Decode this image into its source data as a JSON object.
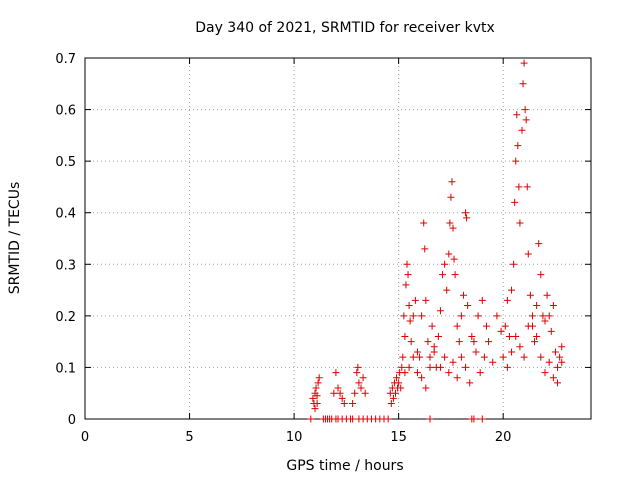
{
  "chart_data": {
    "type": "scatter",
    "title": "Day 340 of 2021, SRMTID for receiver kvtx",
    "xlabel": "GPS time / hours",
    "ylabel": "SRMTID / TECUs",
    "xlim": [
      0,
      24.2
    ],
    "ylim": [
      0,
      0.7
    ],
    "x_ticks": [
      0,
      5,
      10,
      15,
      20
    ],
    "x_tick_labels": [
      "0",
      "5",
      "10",
      "15",
      "20"
    ],
    "y_ticks": [
      0,
      0.1,
      0.2,
      0.3,
      0.4,
      0.5,
      0.6,
      0.7
    ],
    "y_tick_labels": [
      "0",
      "0.1",
      "0.2",
      "0.3",
      "0.4",
      "0.5",
      "0.6",
      "0.7"
    ],
    "grid": true,
    "marker": "+",
    "color": "#dd0000",
    "series": [
      {
        "name": "SRMTID",
        "points": [
          [
            10.8,
            0.0
          ],
          [
            10.9,
            0.04
          ],
          [
            10.95,
            0.03
          ],
          [
            11.0,
            0.05
          ],
          [
            11.05,
            0.06
          ],
          [
            11.1,
            0.045
          ],
          [
            11.15,
            0.07
          ],
          [
            11.2,
            0.08
          ],
          [
            11.0,
            0.02
          ],
          [
            11.1,
            0.03
          ],
          [
            11.4,
            0.0
          ],
          [
            11.5,
            0.0
          ],
          [
            11.6,
            0.0
          ],
          [
            11.7,
            0.0
          ],
          [
            11.8,
            0.0
          ],
          [
            12.0,
            0.0
          ],
          [
            12.1,
            0.0
          ],
          [
            12.3,
            0.0
          ],
          [
            12.5,
            0.0
          ],
          [
            12.7,
            0.0
          ],
          [
            12.8,
            0.0
          ],
          [
            11.9,
            0.05
          ],
          [
            12.0,
            0.09
          ],
          [
            12.1,
            0.06
          ],
          [
            12.2,
            0.05
          ],
          [
            12.3,
            0.04
          ],
          [
            12.4,
            0.03
          ],
          [
            12.8,
            0.03
          ],
          [
            12.9,
            0.05
          ],
          [
            13.0,
            0.09
          ],
          [
            13.05,
            0.1
          ],
          [
            13.1,
            0.07
          ],
          [
            13.2,
            0.06
          ],
          [
            13.3,
            0.08
          ],
          [
            13.4,
            0.05
          ],
          [
            13.1,
            0.0
          ],
          [
            13.3,
            0.0
          ],
          [
            13.5,
            0.0
          ],
          [
            13.7,
            0.0
          ],
          [
            13.9,
            0.0
          ],
          [
            14.1,
            0.0
          ],
          [
            14.3,
            0.0
          ],
          [
            14.5,
            0.0
          ],
          [
            14.6,
            0.05
          ],
          [
            14.65,
            0.03
          ],
          [
            14.7,
            0.06
          ],
          [
            14.75,
            0.04
          ],
          [
            14.8,
            0.07
          ],
          [
            14.85,
            0.05
          ],
          [
            14.9,
            0.08
          ],
          [
            14.95,
            0.06
          ],
          [
            15.0,
            0.07
          ],
          [
            15.05,
            0.09
          ],
          [
            15.1,
            0.06
          ],
          [
            15.15,
            0.1
          ],
          [
            15.2,
            0.12
          ],
          [
            15.25,
            0.2
          ],
          [
            15.3,
            0.16
          ],
          [
            15.35,
            0.26
          ],
          [
            15.4,
            0.3
          ],
          [
            15.45,
            0.28
          ],
          [
            15.5,
            0.22
          ],
          [
            15.55,
            0.19
          ],
          [
            15.6,
            0.15
          ],
          [
            15.7,
            0.2
          ],
          [
            15.8,
            0.23
          ],
          [
            15.9,
            0.13
          ],
          [
            16.0,
            0.12
          ],
          [
            16.1,
            0.2
          ],
          [
            16.2,
            0.38
          ],
          [
            16.25,
            0.33
          ],
          [
            16.3,
            0.23
          ],
          [
            16.4,
            0.15
          ],
          [
            16.5,
            0.12
          ],
          [
            16.6,
            0.18
          ],
          [
            16.7,
            0.14
          ],
          [
            16.8,
            0.1
          ],
          [
            16.9,
            0.16
          ],
          [
            15.3,
            0.09
          ],
          [
            15.5,
            0.1
          ],
          [
            15.7,
            0.12
          ],
          [
            15.9,
            0.09
          ],
          [
            16.1,
            0.08
          ],
          [
            16.3,
            0.06
          ],
          [
            16.5,
            0.1
          ],
          [
            16.7,
            0.13
          ],
          [
            17.0,
            0.21
          ],
          [
            17.1,
            0.28
          ],
          [
            17.2,
            0.3
          ],
          [
            17.3,
            0.25
          ],
          [
            17.4,
            0.32
          ],
          [
            17.45,
            0.38
          ],
          [
            17.5,
            0.43
          ],
          [
            17.55,
            0.46
          ],
          [
            17.6,
            0.37
          ],
          [
            17.65,
            0.31
          ],
          [
            17.7,
            0.28
          ],
          [
            17.8,
            0.18
          ],
          [
            17.9,
            0.15
          ],
          [
            18.0,
            0.2
          ],
          [
            18.1,
            0.24
          ],
          [
            18.2,
            0.4
          ],
          [
            18.25,
            0.39
          ],
          [
            17.0,
            0.1
          ],
          [
            17.2,
            0.12
          ],
          [
            17.4,
            0.09
          ],
          [
            17.6,
            0.11
          ],
          [
            17.8,
            0.08
          ],
          [
            18.0,
            0.12
          ],
          [
            18.2,
            0.1
          ],
          [
            18.4,
            0.07
          ],
          [
            18.6,
            0.15
          ],
          [
            18.8,
            0.2
          ],
          [
            19.0,
            0.23
          ],
          [
            19.2,
            0.18
          ],
          [
            18.3,
            0.22
          ],
          [
            18.5,
            0.16
          ],
          [
            18.7,
            0.13
          ],
          [
            18.9,
            0.09
          ],
          [
            19.1,
            0.12
          ],
          [
            19.3,
            0.15
          ],
          [
            19.5,
            0.11
          ],
          [
            19.7,
            0.2
          ],
          [
            19.9,
            0.17
          ],
          [
            16.5,
            0.0
          ],
          [
            18.5,
            0.0
          ],
          [
            18.6,
            0.0
          ],
          [
            19.0,
            0.0
          ],
          [
            20.0,
            0.12
          ],
          [
            20.1,
            0.18
          ],
          [
            20.2,
            0.23
          ],
          [
            20.3,
            0.16
          ],
          [
            20.4,
            0.25
          ],
          [
            20.5,
            0.3
          ],
          [
            20.55,
            0.42
          ],
          [
            20.6,
            0.5
          ],
          [
            20.65,
            0.59
          ],
          [
            20.7,
            0.53
          ],
          [
            20.75,
            0.45
          ],
          [
            20.8,
            0.38
          ],
          [
            20.9,
            0.56
          ],
          [
            20.95,
            0.65
          ],
          [
            21.0,
            0.69
          ],
          [
            21.05,
            0.6
          ],
          [
            21.1,
            0.58
          ],
          [
            21.15,
            0.45
          ],
          [
            21.2,
            0.32
          ],
          [
            21.3,
            0.24
          ],
          [
            21.4,
            0.18
          ],
          [
            21.5,
            0.15
          ],
          [
            21.6,
            0.22
          ],
          [
            21.7,
            0.34
          ],
          [
            21.8,
            0.28
          ],
          [
            21.9,
            0.2
          ],
          [
            20.2,
            0.1
          ],
          [
            20.4,
            0.13
          ],
          [
            20.6,
            0.16
          ],
          [
            20.8,
            0.14
          ],
          [
            21.0,
            0.12
          ],
          [
            21.2,
            0.18
          ],
          [
            21.4,
            0.2
          ],
          [
            21.6,
            0.16
          ],
          [
            21.8,
            0.12
          ],
          [
            22.0,
            0.19
          ],
          [
            22.1,
            0.24
          ],
          [
            22.2,
            0.2
          ],
          [
            22.3,
            0.17
          ],
          [
            22.4,
            0.22
          ],
          [
            22.5,
            0.13
          ],
          [
            22.6,
            0.1
          ],
          [
            22.7,
            0.12
          ],
          [
            22.8,
            0.14
          ],
          [
            22.0,
            0.09
          ],
          [
            22.2,
            0.11
          ],
          [
            22.4,
            0.08
          ],
          [
            22.6,
            0.07
          ],
          [
            22.8,
            0.11
          ]
        ]
      }
    ]
  }
}
